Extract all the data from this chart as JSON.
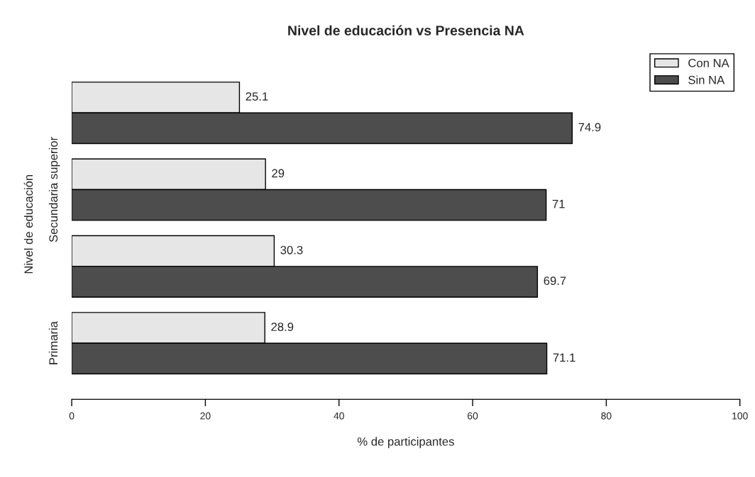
{
  "chart_data": {
    "type": "bar",
    "orientation": "horizontal",
    "title": "Nivel de educación vs Presencia NA",
    "xlabel": "% de participantes",
    "ylabel": "Nivel de educación",
    "categories": [
      null,
      "Secundaria superior",
      null,
      "Primaria"
    ],
    "series": [
      {
        "name": "Con NA",
        "color": "#e6e6e6",
        "values": [
          25.1,
          29,
          30.3,
          28.9
        ]
      },
      {
        "name": "Sin NA",
        "color": "#4d4d4d",
        "values": [
          74.9,
          71,
          69.7,
          71.1
        ]
      }
    ],
    "xlim": [
      0,
      100
    ],
    "xticks": [
      0,
      20,
      40,
      60,
      80,
      100
    ],
    "data_labels": true,
    "legend": "top right",
    "grid": false
  }
}
